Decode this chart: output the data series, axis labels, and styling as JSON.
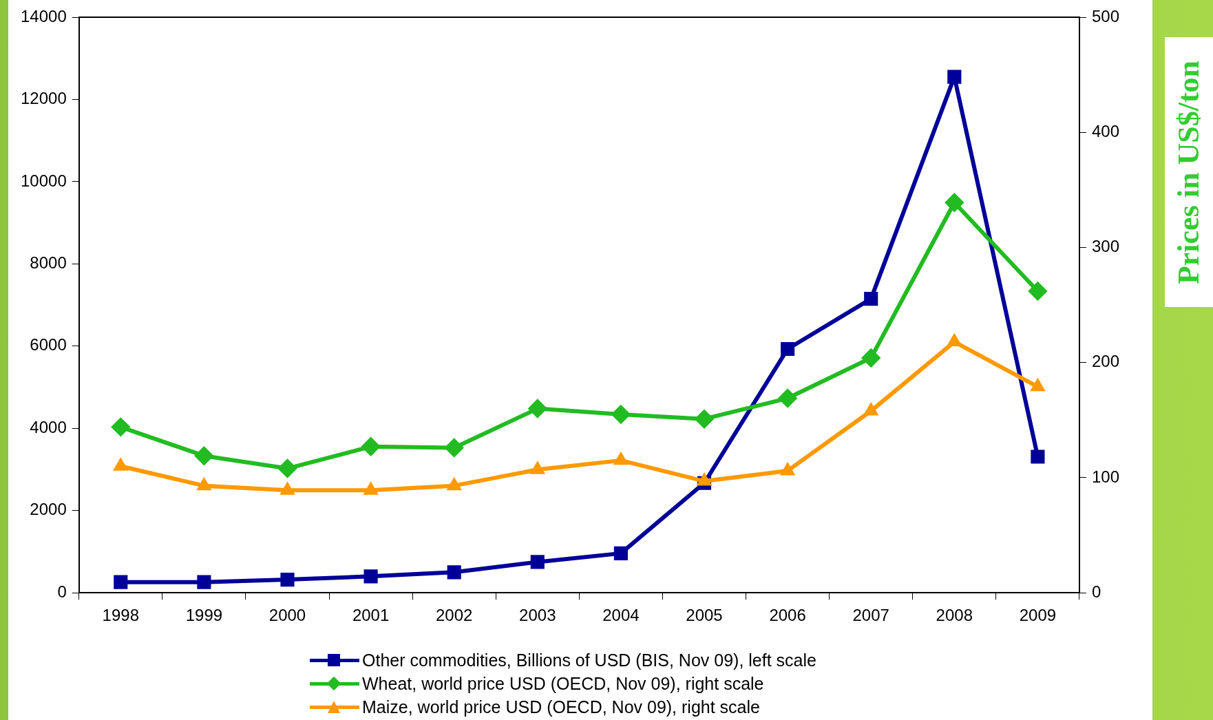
{
  "chart_data": {
    "type": "line",
    "y2label": "Prices in US$/ton",
    "categories": [
      "1998",
      "1999",
      "2000",
      "2001",
      "2002",
      "2003",
      "2004",
      "2005",
      "2006",
      "2007",
      "2008",
      "2009"
    ],
    "series": [
      {
        "name": "Other commodities, Billions of USD (BIS, Nov 09), left scale",
        "color": "#000099",
        "marker": "square",
        "values": [
          260,
          260,
          320,
          400,
          500,
          750,
          960,
          2670,
          5930,
          7150,
          12550,
          3310
        ]
      },
      {
        "name": "Wheat, world price USD (OECD, Nov 09), right scale",
        "color": "#22bb22",
        "marker": "diamond",
        "axis": "y2",
        "values": [
          144,
          119,
          108,
          127,
          126,
          160,
          155,
          151,
          169,
          204,
          339,
          262
        ]
      },
      {
        "name": "Maize, world price USD (OECD, Nov 09), right scale",
        "color": "#ff9900",
        "marker": "triangle",
        "axis": "y2",
        "values": [
          110,
          93,
          89,
          89,
          93,
          107,
          115,
          97,
          106,
          158,
          218,
          179
        ]
      }
    ],
    "ylim": [
      0,
      14000
    ],
    "yticks": [
      0,
      2000,
      4000,
      6000,
      8000,
      10000,
      12000,
      14000
    ],
    "y2lim": [
      0,
      500
    ],
    "y2ticks": [
      0,
      100,
      200,
      300,
      400,
      500
    ],
    "grid": false,
    "legend": "bottom",
    "line_style": "solid"
  }
}
